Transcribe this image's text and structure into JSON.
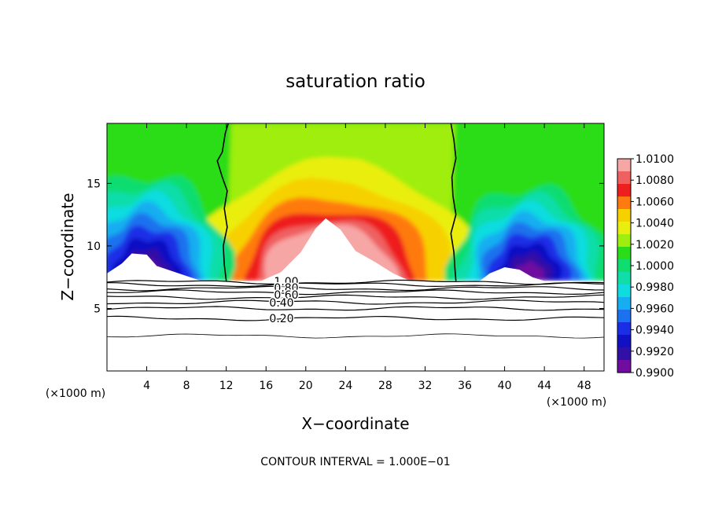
{
  "chart_data": {
    "type": "heatmap",
    "title": "saturation ratio",
    "xlabel": "X−coordinate",
    "ylabel": "Z−coordinate",
    "x_unit": "(×1000 m)",
    "xlim": [
      0,
      50
    ],
    "ylim": [
      0,
      19.8
    ],
    "x_ticks": [
      4,
      8,
      12,
      16,
      20,
      24,
      28,
      32,
      36,
      40,
      44,
      48
    ],
    "y_ticks": [
      5,
      10,
      15
    ],
    "colorbar": {
      "levels": [
        "1.0100",
        "1.0080",
        "1.0060",
        "1.0040",
        "1.0020",
        "1.0000",
        "0.9980",
        "0.9960",
        "0.9940",
        "0.9920",
        "0.9900"
      ],
      "colors": [
        "#f7a6a6",
        "#ef6060",
        "#ee1f1f",
        "#ff7a10",
        "#f7d000",
        "#eaee10",
        "#9fee10",
        "#2bdd18",
        "#10dd70",
        "#10dda8",
        "#10dce0",
        "#16aef0",
        "#1c72ee",
        "#1a2ee6",
        "#1010c4",
        "#3010a6",
        "#700ca0"
      ]
    },
    "contour_labels": [
      "1.00",
      "0.80",
      "0.60",
      "0.40",
      "0.20"
    ],
    "subtitle": "CONTOUR INTERVAL = 1.000E−01"
  }
}
